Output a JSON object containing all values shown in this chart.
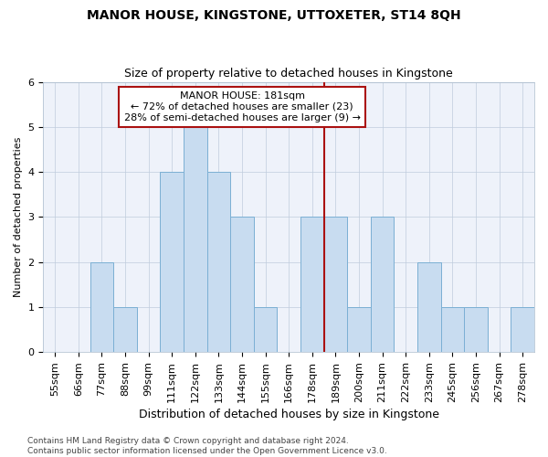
{
  "title": "MANOR HOUSE, KINGSTONE, UTTOXETER, ST14 8QH",
  "subtitle": "Size of property relative to detached houses in Kingstone",
  "xlabel": "Distribution of detached houses by size in Kingstone",
  "ylabel": "Number of detached properties",
  "categories": [
    "55sqm",
    "66sqm",
    "77sqm",
    "88sqm",
    "99sqm",
    "111sqm",
    "122sqm",
    "133sqm",
    "144sqm",
    "155sqm",
    "166sqm",
    "178sqm",
    "189sqm",
    "200sqm",
    "211sqm",
    "222sqm",
    "233sqm",
    "245sqm",
    "256sqm",
    "267sqm",
    "278sqm"
  ],
  "values": [
    0,
    0,
    2,
    1,
    0,
    4,
    5,
    4,
    3,
    1,
    0,
    3,
    3,
    1,
    3,
    0,
    2,
    1,
    1,
    0,
    1
  ],
  "bar_color": "#c8dcf0",
  "bar_edge_color": "#7bafd4",
  "highlight_line_color": "#aa1111",
  "annotation_text": "MANOR HOUSE: 181sqm\n← 72% of detached houses are smaller (23)\n28% of semi-detached houses are larger (9) →",
  "annotation_box_color": "#aa1111",
  "ylim": [
    0,
    6
  ],
  "yticks": [
    0,
    1,
    2,
    3,
    4,
    5,
    6
  ],
  "footer": "Contains HM Land Registry data © Crown copyright and database right 2024.\nContains public sector information licensed under the Open Government Licence v3.0.",
  "bg_color": "#eef2fa",
  "grid_color": "#c0ccdd",
  "title_fontsize": 10,
  "subtitle_fontsize": 9,
  "xlabel_fontsize": 9,
  "ylabel_fontsize": 8,
  "tick_fontsize": 8,
  "footer_fontsize": 6.5
}
